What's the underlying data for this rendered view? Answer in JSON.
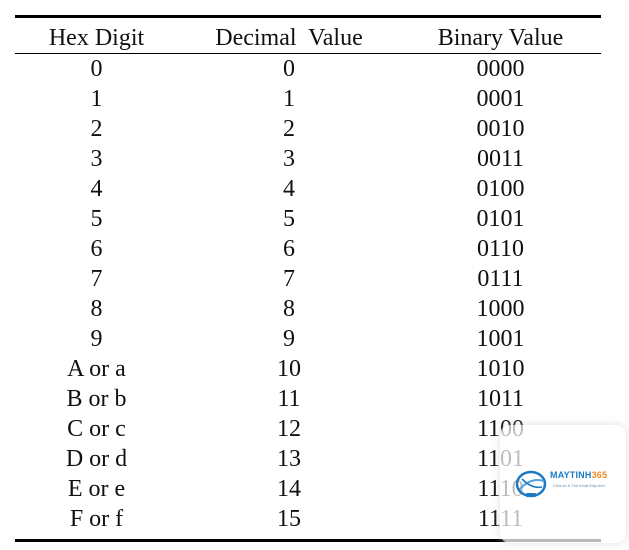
{
  "table": {
    "headers": [
      "Hex Digit",
      "Decimal  Value",
      "Binary Value"
    ],
    "rows": [
      [
        "0",
        "0",
        "0000"
      ],
      [
        "1",
        "1",
        "0001"
      ],
      [
        "2",
        "2",
        "0010"
      ],
      [
        "3",
        "3",
        "0011"
      ],
      [
        "4",
        "4",
        "0100"
      ],
      [
        "5",
        "5",
        "0101"
      ],
      [
        "6",
        "6",
        "0110"
      ],
      [
        "7",
        "7",
        "0111"
      ],
      [
        "8",
        "8",
        "1000"
      ],
      [
        "9",
        "9",
        "1001"
      ],
      [
        "A or a",
        "10",
        "1010"
      ],
      [
        "B or b",
        "11",
        "1011"
      ],
      [
        "C or c",
        "12",
        "1100"
      ],
      [
        "D or d",
        "13",
        "1101"
      ],
      [
        "E or e",
        "14",
        "1110"
      ],
      [
        "F or f",
        "15",
        "1111"
      ]
    ]
  },
  "watermark": {
    "brand_main": "MAYTINH",
    "brand_accent": "365",
    "tagline": "Chia sẻ & Thủ thuật Máy tính",
    "colors": {
      "brand": "#1d7ac2",
      "accent": "#f08a24"
    }
  }
}
